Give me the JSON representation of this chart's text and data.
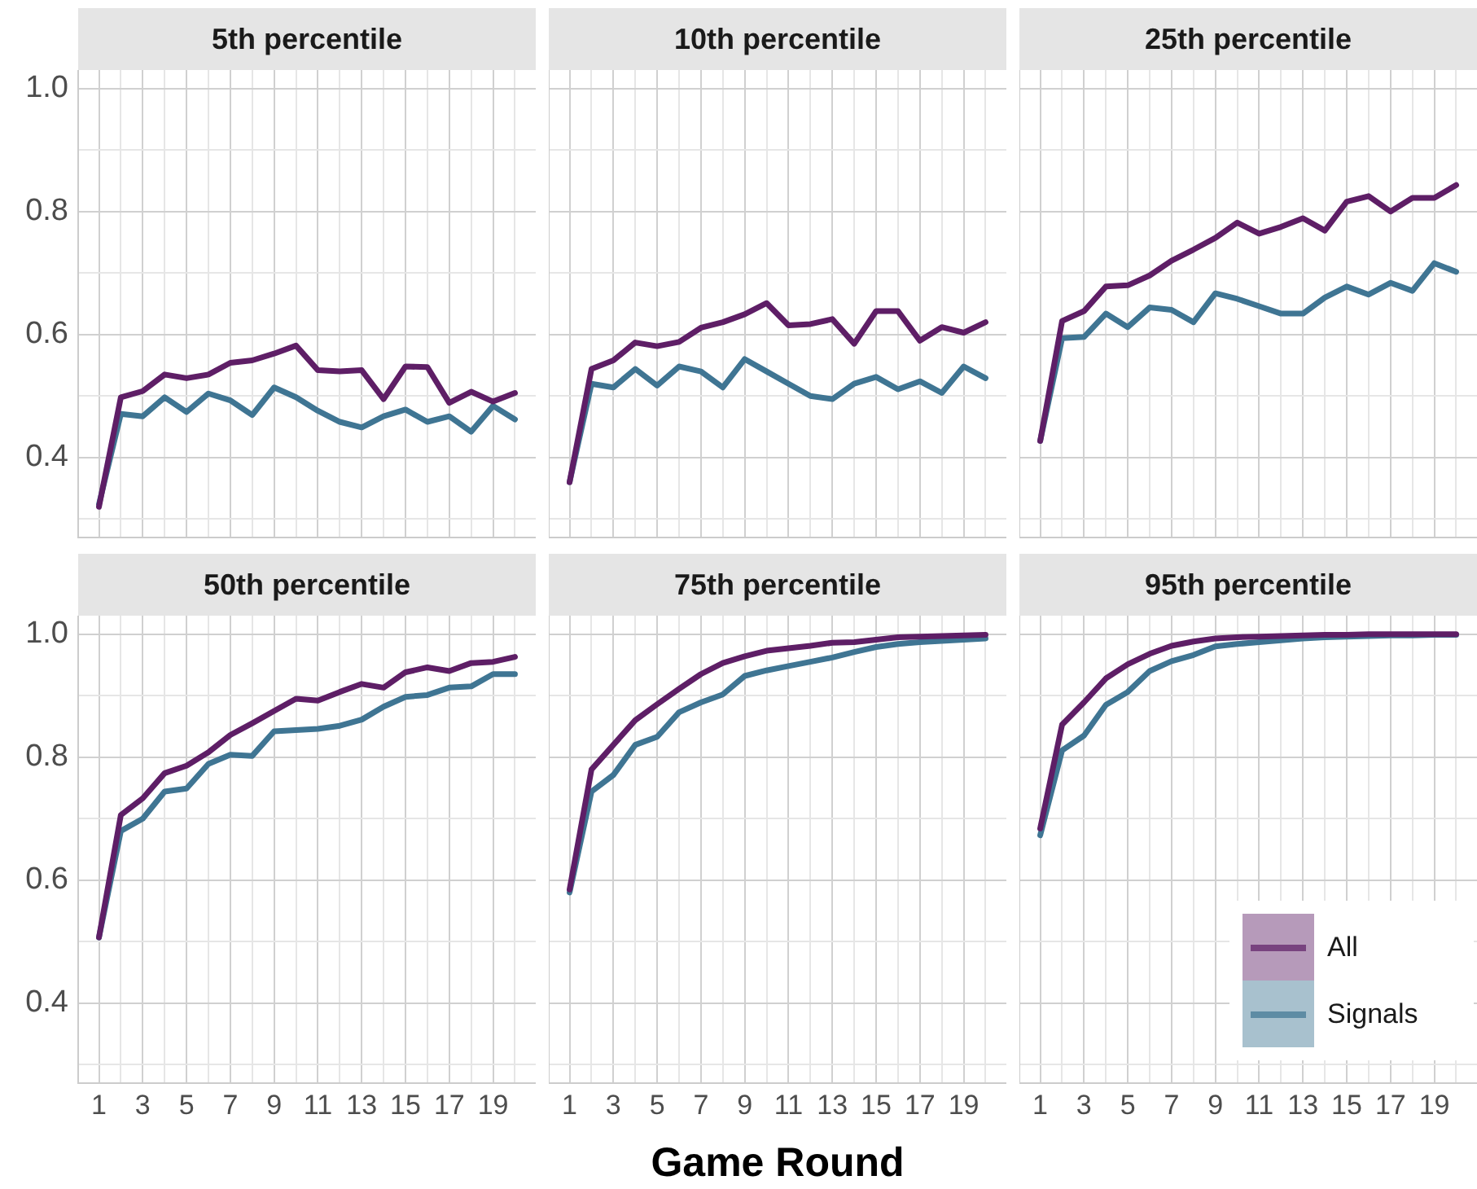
{
  "chart_data": [
    {
      "type": "line",
      "title": "5th percentile",
      "x": [
        1,
        2,
        3,
        4,
        5,
        6,
        7,
        8,
        9,
        10,
        11,
        12,
        13,
        14,
        15,
        16,
        17,
        18,
        19,
        20
      ],
      "xlim": [
        0.05,
        20.95
      ],
      "ylim": [
        0.27,
        1.03
      ],
      "xticks": [
        1,
        {
          "value": 2,
          "label": null
        },
        3,
        {
          "value": 4,
          "label": null
        },
        5,
        {
          "value": 6,
          "label": null
        },
        7,
        {
          "value": 8,
          "label": null
        },
        9,
        {
          "value": 10,
          "label": null
        },
        11,
        {
          "value": 12,
          "label": null
        },
        13,
        {
          "value": 14,
          "label": null
        },
        15,
        {
          "value": 16,
          "label": null
        },
        17,
        {
          "value": 18,
          "label": null
        },
        19,
        {
          "value": 20,
          "label": null
        }
      ],
      "yticks": [
        {
          "value": 0.3,
          "label": null
        },
        0.4,
        {
          "value": 0.5,
          "label": null
        },
        0.6,
        {
          "value": 0.7,
          "label": null
        },
        0.8,
        {
          "value": 0.9,
          "label": null
        },
        {
          "value": 1,
          "label": "1.0"
        }
      ],
      "grid": true,
      "tick_labels": "y",
      "line_style": "solid",
      "marker": "none",
      "series": [
        {
          "color": "#5e1e66",
          "values": [
            0.32,
            0.498,
            0.508,
            0.535,
            0.529,
            0.535,
            0.554,
            0.558,
            0.569,
            0.582,
            0.542,
            0.54,
            0.542,
            0.495,
            0.548,
            0.547,
            0.489,
            0.507,
            0.491,
            0.505
          ]
        },
        {
          "color": "#3f7593",
          "values": [
            0.324,
            0.471,
            0.467,
            0.498,
            0.474,
            0.504,
            0.493,
            0.469,
            0.514,
            0.498,
            0.476,
            0.458,
            0.449,
            0.467,
            0.478,
            0.458,
            0.467,
            0.442,
            0.484,
            0.462
          ]
        }
      ]
    },
    {
      "type": "line",
      "title": "10th percentile",
      "x": [
        1,
        2,
        3,
        4,
        5,
        6,
        7,
        8,
        9,
        10,
        11,
        12,
        13,
        14,
        15,
        16,
        17,
        18,
        19,
        20
      ],
      "xlim": [
        0.05,
        20.95
      ],
      "ylim": [
        0.27,
        1.03
      ],
      "xticks": [
        1,
        {
          "value": 2,
          "label": null
        },
        3,
        {
          "value": 4,
          "label": null
        },
        5,
        {
          "value": 6,
          "label": null
        },
        7,
        {
          "value": 8,
          "label": null
        },
        9,
        {
          "value": 10,
          "label": null
        },
        11,
        {
          "value": 12,
          "label": null
        },
        13,
        {
          "value": 14,
          "label": null
        },
        15,
        {
          "value": 16,
          "label": null
        },
        17,
        {
          "value": 18,
          "label": null
        },
        19,
        {
          "value": 20,
          "label": null
        }
      ],
      "yticks": [
        {
          "value": 0.3,
          "label": null
        },
        0.4,
        {
          "value": 0.5,
          "label": null
        },
        0.6,
        {
          "value": 0.7,
          "label": null
        },
        0.8,
        {
          "value": 0.9,
          "label": null
        },
        1.0
      ],
      "grid": true,
      "tick_labels": false,
      "line_style": "solid",
      "marker": "none",
      "series": [
        {
          "color": "#5e1e66",
          "values": [
            0.36,
            0.544,
            0.558,
            0.587,
            0.581,
            0.588,
            0.611,
            0.62,
            0.633,
            0.651,
            0.615,
            0.617,
            0.625,
            0.585,
            0.638,
            0.638,
            0.59,
            0.612,
            0.603,
            0.62
          ]
        },
        {
          "color": "#3f7593",
          "values": [
            0.36,
            0.52,
            0.514,
            0.544,
            0.517,
            0.548,
            0.54,
            0.514,
            0.56,
            0.54,
            0.52,
            0.5,
            0.495,
            0.52,
            0.531,
            0.511,
            0.524,
            0.505,
            0.548,
            0.529
          ]
        }
      ]
    },
    {
      "type": "line",
      "title": "25th percentile",
      "x": [
        1,
        2,
        3,
        4,
        5,
        6,
        7,
        8,
        9,
        10,
        11,
        12,
        13,
        14,
        15,
        16,
        17,
        18,
        19,
        20
      ],
      "xlim": [
        0.05,
        20.95
      ],
      "ylim": [
        0.27,
        1.03
      ],
      "xticks": [
        1,
        {
          "value": 2,
          "label": null
        },
        3,
        {
          "value": 4,
          "label": null
        },
        5,
        {
          "value": 6,
          "label": null
        },
        7,
        {
          "value": 8,
          "label": null
        },
        9,
        {
          "value": 10,
          "label": null
        },
        11,
        {
          "value": 12,
          "label": null
        },
        13,
        {
          "value": 14,
          "label": null
        },
        15,
        {
          "value": 16,
          "label": null
        },
        17,
        {
          "value": 18,
          "label": null
        },
        19,
        {
          "value": 20,
          "label": null
        }
      ],
      "yticks": [
        {
          "value": 0.3,
          "label": null
        },
        0.4,
        {
          "value": 0.5,
          "label": null
        },
        0.6,
        {
          "value": 0.7,
          "label": null
        },
        0.8,
        {
          "value": 0.9,
          "label": null
        },
        1.0
      ],
      "grid": true,
      "tick_labels": false,
      "line_style": "solid",
      "marker": "none",
      "series": [
        {
          "color": "#5e1e66",
          "values": [
            0.427,
            0.622,
            0.638,
            0.678,
            0.68,
            0.696,
            0.72,
            0.738,
            0.757,
            0.782,
            0.764,
            0.775,
            0.789,
            0.769,
            0.816,
            0.825,
            0.8,
            0.822,
            0.822,
            0.843
          ]
        },
        {
          "color": "#3f7593",
          "values": [
            0.427,
            0.594,
            0.596,
            0.634,
            0.612,
            0.644,
            0.64,
            0.62,
            0.667,
            0.658,
            0.646,
            0.634,
            0.634,
            0.66,
            0.678,
            0.665,
            0.684,
            0.671,
            0.716,
            0.702
          ]
        }
      ]
    },
    {
      "type": "line",
      "title": "50th percentile",
      "x": [
        1,
        2,
        3,
        4,
        5,
        6,
        7,
        8,
        9,
        10,
        11,
        12,
        13,
        14,
        15,
        16,
        17,
        18,
        19,
        20
      ],
      "xlim": [
        0.05,
        20.95
      ],
      "ylim": [
        0.27,
        1.03
      ],
      "xticks": [
        1,
        {
          "value": 2,
          "label": null
        },
        3,
        {
          "value": 4,
          "label": null
        },
        5,
        {
          "value": 6,
          "label": null
        },
        7,
        {
          "value": 8,
          "label": null
        },
        9,
        {
          "value": 10,
          "label": null
        },
        11,
        {
          "value": 12,
          "label": null
        },
        13,
        {
          "value": 14,
          "label": null
        },
        15,
        {
          "value": 16,
          "label": null
        },
        17,
        {
          "value": 18,
          "label": null
        },
        19,
        {
          "value": 20,
          "label": null
        }
      ],
      "yticks": [
        {
          "value": 0.3,
          "label": null
        },
        0.4,
        {
          "value": 0.5,
          "label": null
        },
        0.6,
        {
          "value": 0.7,
          "label": null
        },
        0.8,
        {
          "value": 0.9,
          "label": null
        },
        {
          "value": 1,
          "label": "1.0"
        }
      ],
      "grid": true,
      "line_style": "solid",
      "marker": "none",
      "series": [
        {
          "color": "#5e1e66",
          "values": [
            0.507,
            0.706,
            0.733,
            0.774,
            0.786,
            0.808,
            0.836,
            0.855,
            0.875,
            0.895,
            0.892,
            0.906,
            0.919,
            0.913,
            0.938,
            0.946,
            0.94,
            0.953,
            0.955,
            0.963
          ]
        },
        {
          "color": "#3f7593",
          "values": [
            0.507,
            0.68,
            0.7,
            0.744,
            0.749,
            0.789,
            0.804,
            0.802,
            0.842,
            0.844,
            0.846,
            0.851,
            0.861,
            0.882,
            0.898,
            0.901,
            0.913,
            0.915,
            0.935,
            0.935
          ]
        }
      ]
    },
    {
      "type": "line",
      "title": "75th percentile",
      "xlabel": "Game Round",
      "x": [
        1,
        2,
        3,
        4,
        5,
        6,
        7,
        8,
        9,
        10,
        11,
        12,
        13,
        14,
        15,
        16,
        17,
        18,
        19,
        20
      ],
      "xlim": [
        0.05,
        20.95
      ],
      "ylim": [
        0.27,
        1.03
      ],
      "xticks": [
        1,
        {
          "value": 2,
          "label": null
        },
        3,
        {
          "value": 4,
          "label": null
        },
        5,
        {
          "value": 6,
          "label": null
        },
        7,
        {
          "value": 8,
          "label": null
        },
        9,
        {
          "value": 10,
          "label": null
        },
        11,
        {
          "value": 12,
          "label": null
        },
        13,
        {
          "value": 14,
          "label": null
        },
        15,
        {
          "value": 16,
          "label": null
        },
        17,
        {
          "value": 18,
          "label": null
        },
        19,
        {
          "value": 20,
          "label": null
        }
      ],
      "yticks": [
        {
          "value": 0.3,
          "label": null
        },
        0.4,
        {
          "value": 0.5,
          "label": null
        },
        0.6,
        {
          "value": 0.7,
          "label": null
        },
        0.8,
        {
          "value": 0.9,
          "label": null
        },
        1.0
      ],
      "grid": true,
      "tick_labels": "x",
      "line_style": "solid",
      "marker": "none",
      "series": [
        {
          "color": "#5e1e66",
          "values": [
            0.585,
            0.78,
            0.82,
            0.86,
            0.886,
            0.911,
            0.935,
            0.953,
            0.964,
            0.973,
            0.977,
            0.981,
            0.986,
            0.987,
            0.991,
            0.995,
            0.996,
            0.997,
            0.998,
            0.999
          ]
        },
        {
          "color": "#3f7593",
          "values": [
            0.58,
            0.744,
            0.771,
            0.82,
            0.833,
            0.873,
            0.889,
            0.902,
            0.932,
            0.941,
            0.948,
            0.955,
            0.962,
            0.971,
            0.979,
            0.984,
            0.987,
            0.989,
            0.991,
            0.993
          ]
        }
      ]
    },
    {
      "type": "line",
      "title": "95th percentile",
      "x": [
        1,
        2,
        3,
        4,
        5,
        6,
        7,
        8,
        9,
        10,
        11,
        12,
        13,
        14,
        15,
        16,
        17,
        18,
        19,
        20
      ],
      "xlim": [
        0.05,
        20.95
      ],
      "ylim": [
        0.27,
        1.03
      ],
      "xticks": [
        1,
        {
          "value": 2,
          "label": null
        },
        3,
        {
          "value": 4,
          "label": null
        },
        5,
        {
          "value": 6,
          "label": null
        },
        7,
        {
          "value": 8,
          "label": null
        },
        9,
        {
          "value": 10,
          "label": null
        },
        11,
        {
          "value": 12,
          "label": null
        },
        13,
        {
          "value": 14,
          "label": null
        },
        15,
        {
          "value": 16,
          "label": null
        },
        17,
        {
          "value": 18,
          "label": null
        },
        19,
        {
          "value": 20,
          "label": null
        }
      ],
      "yticks": [
        {
          "value": 0.3,
          "label": null
        },
        0.4,
        {
          "value": 0.5,
          "label": null
        },
        0.6,
        {
          "value": 0.7,
          "label": null
        },
        0.8,
        {
          "value": 0.9,
          "label": null
        },
        1.0
      ],
      "grid": true,
      "tick_labels": "x",
      "legend": "bottom right",
      "line_style": "solid",
      "marker": "none",
      "series": [
        {
          "name": "All",
          "color": "#5e1e66",
          "values": [
            0.684,
            0.853,
            0.889,
            0.928,
            0.951,
            0.968,
            0.981,
            0.988,
            0.993,
            0.995,
            0.996,
            0.997,
            0.998,
            0.999,
            0.999,
            1,
            1,
            1,
            1,
            1
          ]
        },
        {
          "name": "Signals",
          "color": "#3f7593",
          "values": [
            0.673,
            0.811,
            0.835,
            0.885,
            0.906,
            0.94,
            0.956,
            0.966,
            0.98,
            0.984,
            0.987,
            0.99,
            0.993,
            0.995,
            0.996,
            0.997,
            0.998,
            0.998,
            0.999,
            0.999
          ]
        }
      ]
    }
  ]
}
